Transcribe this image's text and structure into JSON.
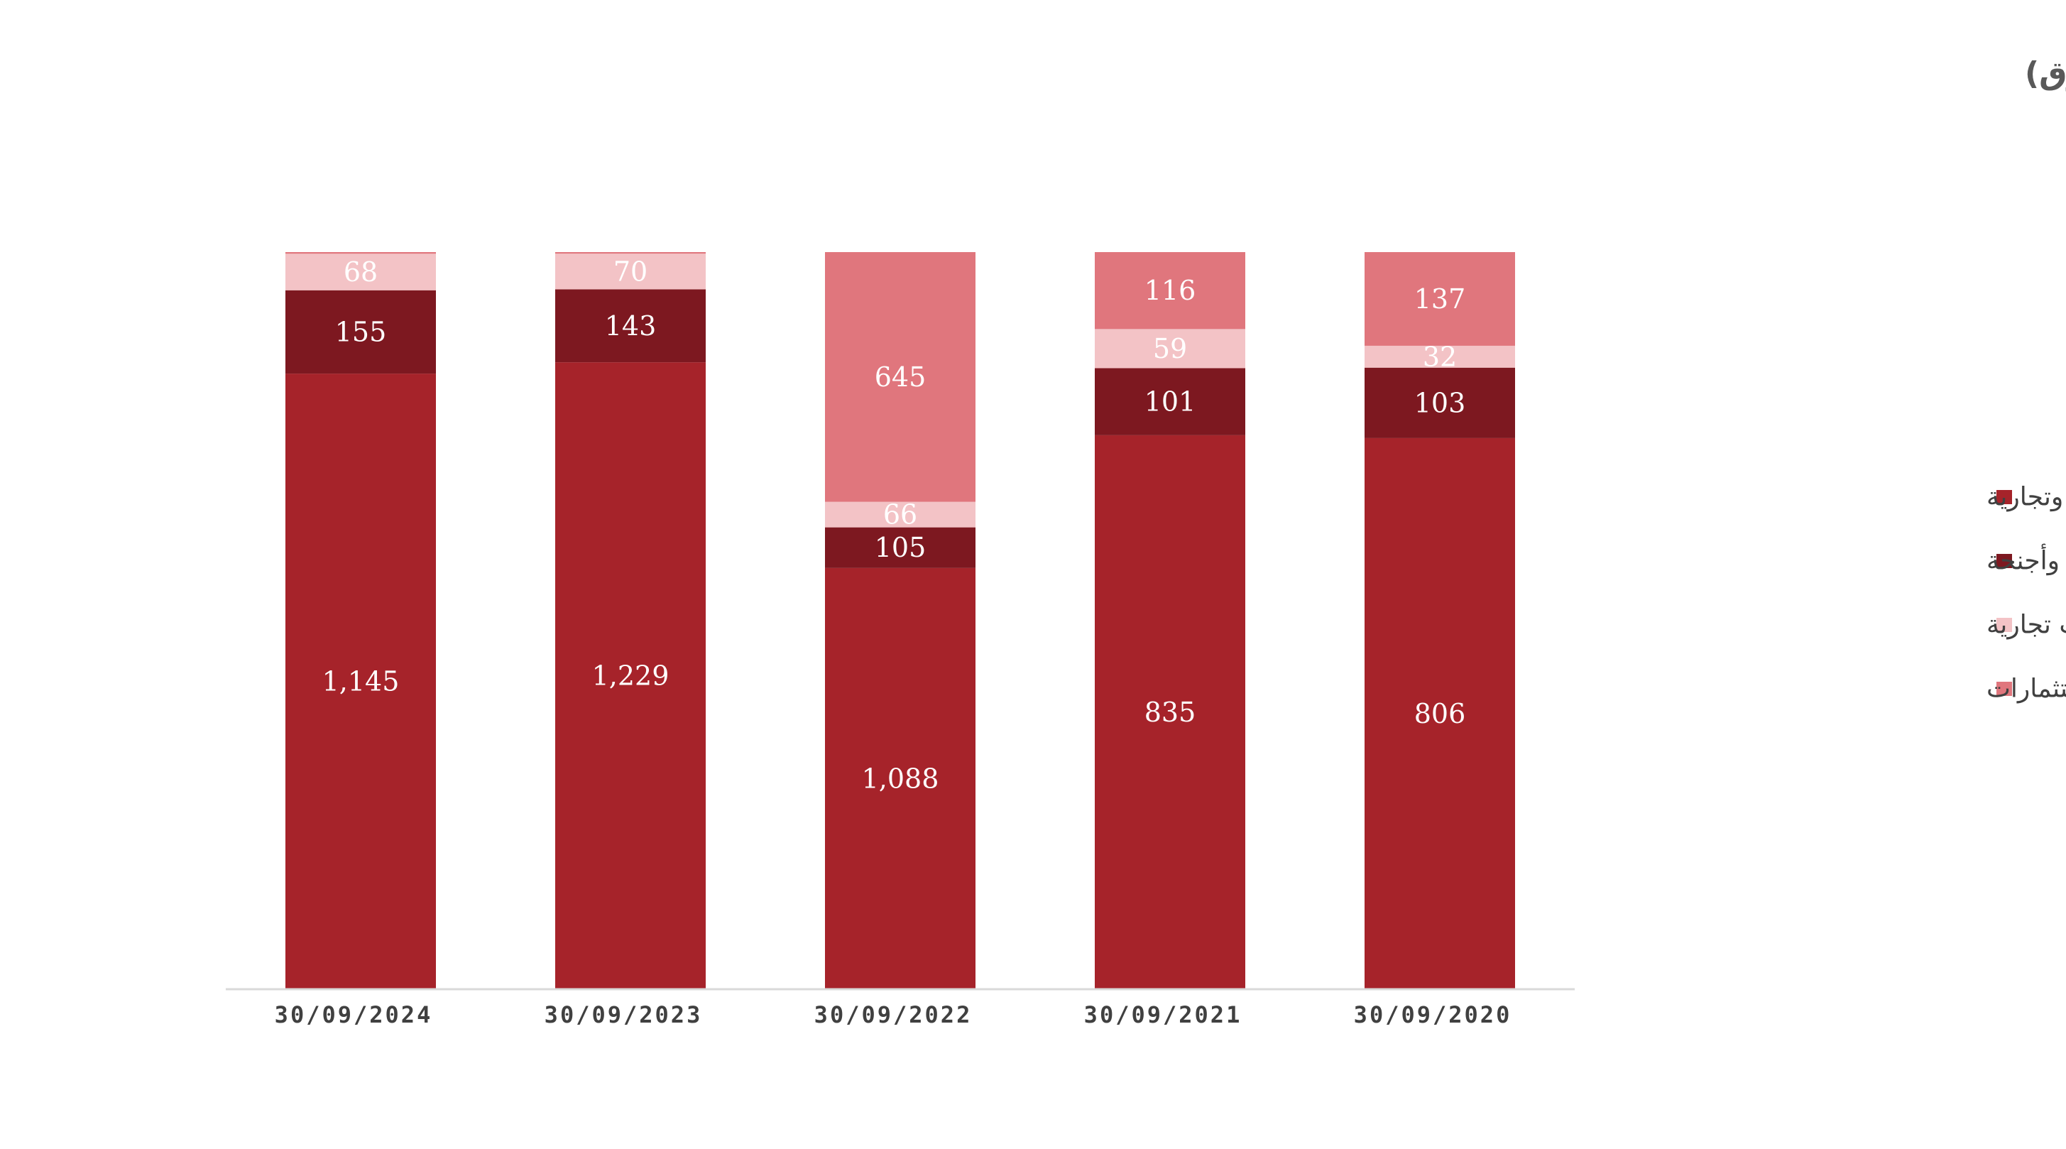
{
  "chart_data": {
    "type": "bar",
    "stacked": true,
    "title": "إجمالي الإيرادات لكل قطاع - (مليون رق)",
    "categories": [
      "30/09/2024",
      "30/09/2023",
      "30/09/2022",
      "30/09/2021",
      "30/09/2020"
    ],
    "series": [
      {
        "name": "عقارات سكنية وتجارية",
        "color": "#A6232A",
        "values": [
          1145,
          1229,
          1088,
          835,
          806
        ],
        "labels": [
          "1,145",
          "1,229",
          "1,088",
          "835",
          "806"
        ]
      },
      {
        "name": "فندق وأجنحة",
        "color": "#7D1820",
        "values": [
          155,
          143,
          105,
          101,
          103
        ],
        "labels": [
          "155",
          "143",
          "105",
          "101",
          "103"
        ]
      },
      {
        "name": "مجمعات تجارية",
        "color": "#F3C3C6",
        "values": [
          68,
          70,
          66,
          59,
          32
        ],
        "labels": [
          "68",
          "70",
          "66",
          "59",
          "32"
        ]
      },
      {
        "name": "إستثمارات",
        "color": "#E0767D",
        "values": [
          3,
          3,
          645,
          116,
          137
        ],
        "labels": [
          "",
          "",
          "645",
          "116",
          "137"
        ]
      }
    ],
    "normalized": true,
    "legend_position": "right",
    "grid": false
  }
}
